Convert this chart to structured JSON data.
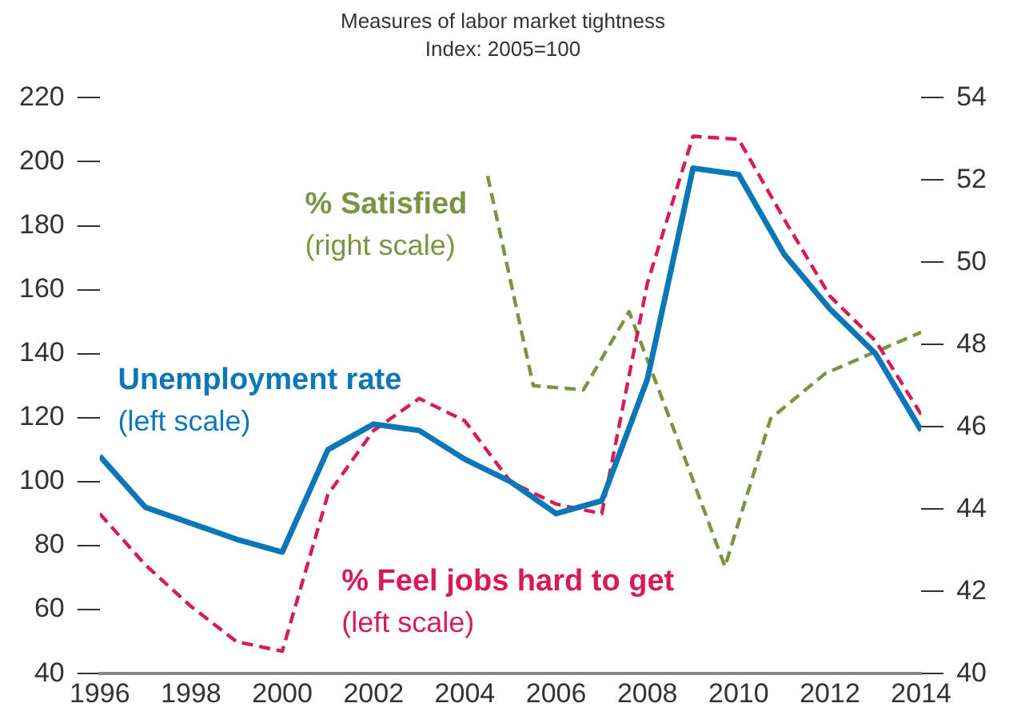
{
  "chart_data": {
    "type": "line",
    "title": "Measures of labor market tightness",
    "subtitle": "Index: 2005=100",
    "xlim": [
      1996,
      2014
    ],
    "xticks": [
      1996,
      1998,
      2000,
      2002,
      2004,
      2006,
      2008,
      2010,
      2012,
      2014
    ],
    "ylim": [
      40,
      220
    ],
    "yticks": [
      40,
      60,
      80,
      100,
      120,
      140,
      160,
      180,
      200,
      220
    ],
    "y2lim": [
      40,
      54
    ],
    "y2ticks": [
      40,
      42,
      44,
      46,
      48,
      50,
      52,
      54
    ],
    "grid": false,
    "legend": false,
    "marker": "none",
    "annotations": [
      "(left scale)",
      "(left scale)",
      "(right scale)"
    ],
    "series": [
      {
        "name": "Unemployment rate",
        "color": "#0b76b8",
        "line_style": "solid",
        "x": [
          1996,
          1997,
          1998,
          1999,
          2000,
          2001,
          2002,
          2003,
          2004,
          2005,
          2006,
          2007,
          2008,
          2009,
          2010,
          2011,
          2012,
          2013,
          2014
        ],
        "values": [
          108,
          92,
          87,
          82,
          78,
          110,
          118,
          116,
          107,
          100,
          90,
          94,
          132,
          198,
          196,
          171,
          154,
          140,
          116
        ]
      },
      {
        "name": "% Feel jobs hard to get",
        "color": "#d81b55",
        "line_style": "dashed",
        "x": [
          1996,
          1997,
          1998,
          1999,
          2000,
          2001,
          2002,
          2003,
          2004,
          2005,
          2006,
          2007,
          2008,
          2009,
          2010,
          2011,
          2012,
          2013,
          2014
        ],
        "values": [
          90,
          74,
          61,
          50,
          47,
          96,
          116,
          126,
          119,
          100,
          93,
          90,
          162,
          208,
          207,
          182,
          158,
          144,
          121
        ]
      },
      {
        "name": "% Satisfied",
        "color": "#7a9442",
        "line_style": "dashed",
        "axis": "y2",
        "x": [
          2004.5,
          2005.5,
          2006.6,
          2007.6,
          2008.9,
          2009.7,
          2010.7,
          2011.9,
          2014
        ],
        "values": [
          52.1,
          47.0,
          46.9,
          48.8,
          45.0,
          42.6,
          46.2,
          47.3,
          48.3
        ]
      }
    ]
  }
}
